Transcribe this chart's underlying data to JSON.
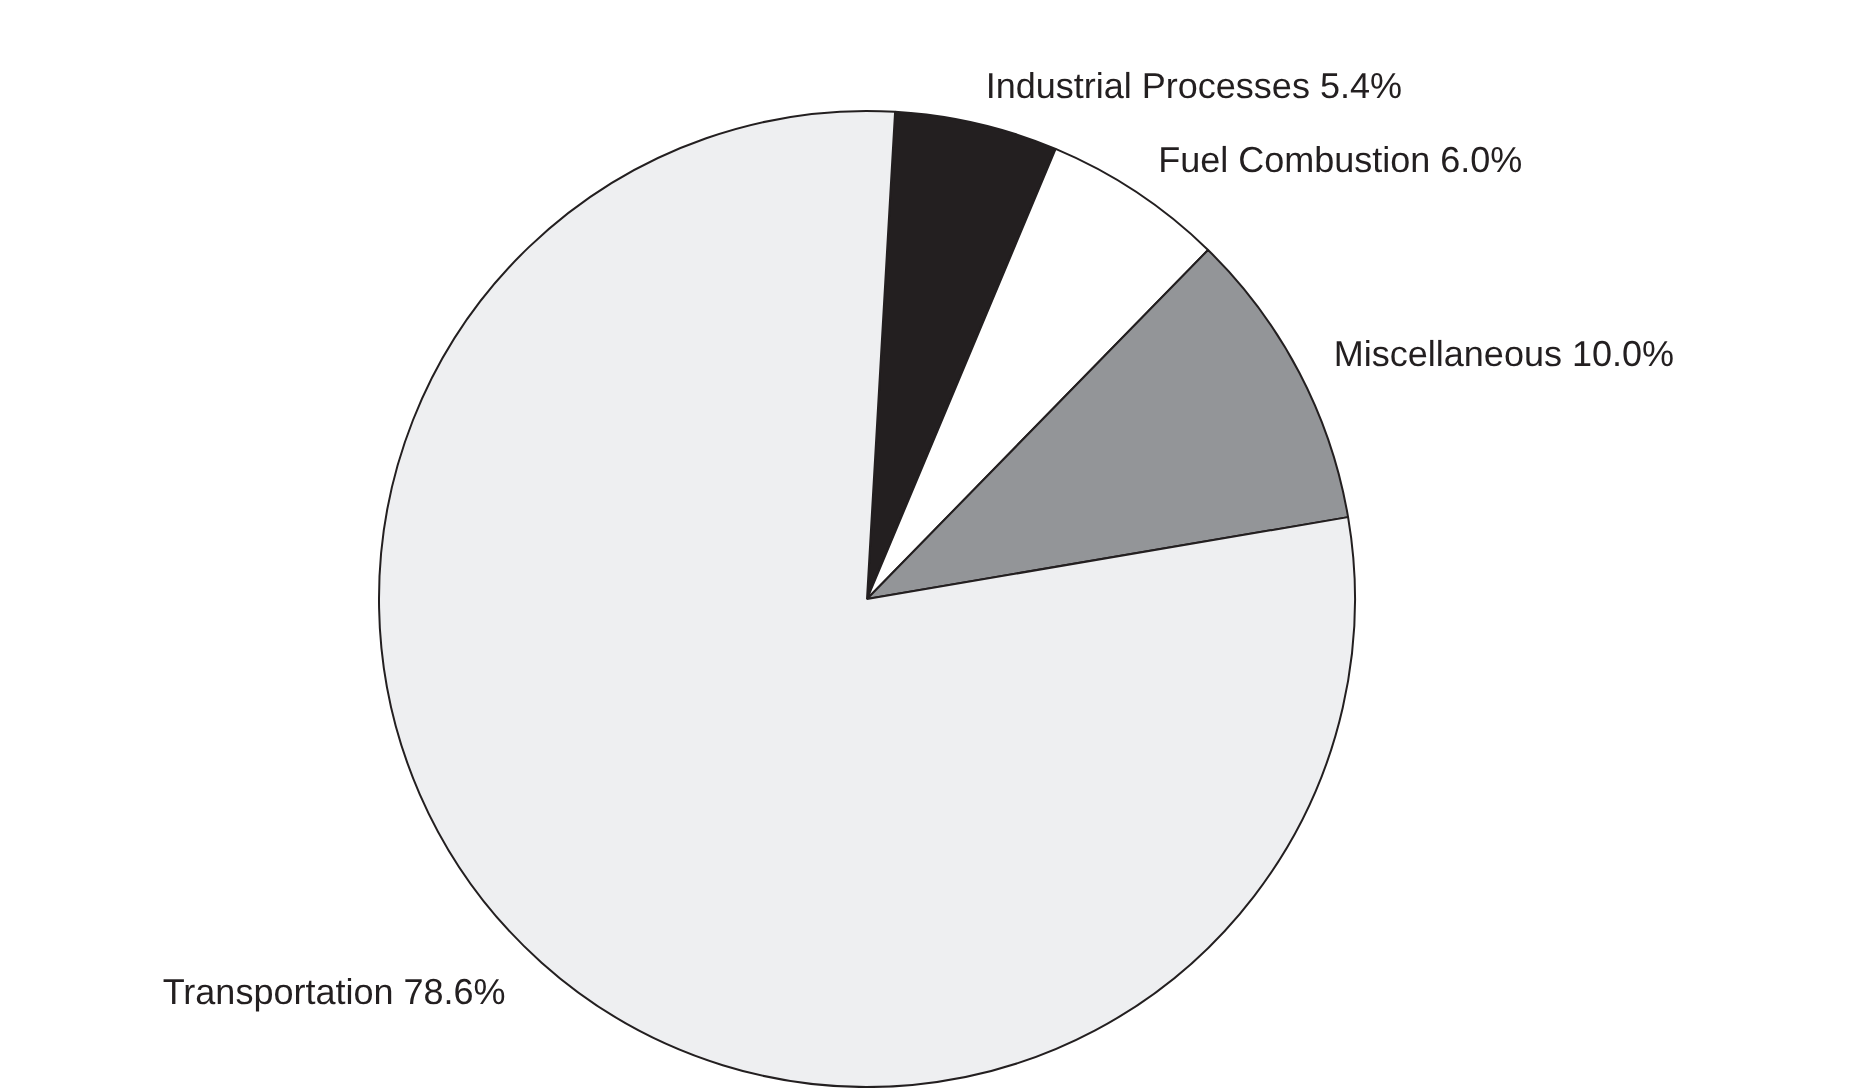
{
  "chart_data": {
    "type": "pie",
    "categories": [
      "Industrial Processes",
      "Fuel Combustion",
      "Miscellaneous",
      "Transportation"
    ],
    "values": [
      5.4,
      6.0,
      10.0,
      78.6
    ],
    "value_labels": [
      "5.4%",
      "6.0%",
      "10.0%",
      "78.6%"
    ],
    "colors": [
      "#231f20",
      "#ffffff",
      "#939598",
      "#eeeff1"
    ]
  }
}
